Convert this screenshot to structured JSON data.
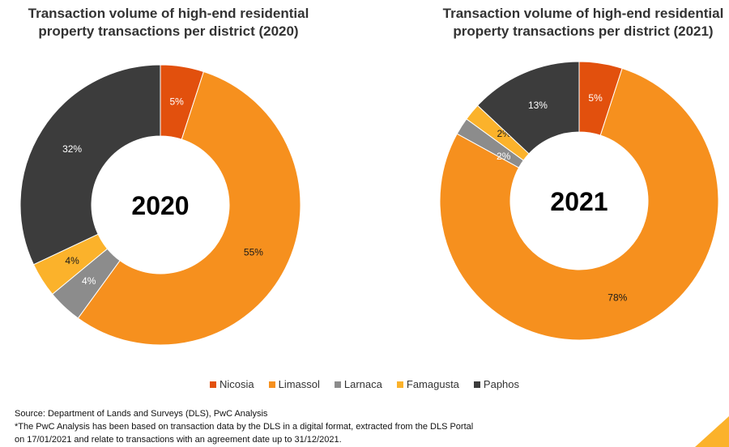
{
  "chart_data": [
    {
      "type": "pie",
      "title": "Transaction volume of high-end residential property transactions per district (2020)",
      "center_label": "2020",
      "categories": [
        "Nicosia",
        "Limassol",
        "Larnaca",
        "Famagusta",
        "Paphos"
      ],
      "values": [
        5,
        55,
        4,
        4,
        32
      ],
      "labels": [
        "5%",
        "55%",
        "4%",
        "4%",
        "32%"
      ]
    },
    {
      "type": "pie",
      "title": "Transaction volume of high-end residential property transactions per district (2021)",
      "center_label": "2021",
      "categories": [
        "Nicosia",
        "Limassol",
        "Larnaca",
        "Famagusta",
        "Paphos"
      ],
      "values": [
        5,
        78,
        2,
        2,
        13
      ],
      "labels": [
        "5%",
        "78%",
        "2%",
        "2%",
        "13%"
      ]
    }
  ],
  "titles": {
    "left_line1": "Transaction volume of high-end residential",
    "left_line2": "property transactions per district (2020)",
    "right_line1": "Transaction volume of high-end residential",
    "right_line2": "property transactions per district (2021)"
  },
  "legend": [
    {
      "label": "Nicosia",
      "color": "#e2500d"
    },
    {
      "label": "Limassol",
      "color": "#f6901e"
    },
    {
      "label": "Larnaca",
      "color": "#8c8c8c"
    },
    {
      "label": "Famagusta",
      "color": "#fbb22b"
    },
    {
      "label": "Paphos",
      "color": "#3c3c3c"
    }
  ],
  "source": {
    "line1": "Source: Department of Lands and Surveys (DLS), PwC Analysis",
    "line2": "*The PwC Analysis has been based on transaction data by the DLS in a digital format, extracted from the DLS Portal",
    "line3": "on 17/01/2021 and relate to transactions with an agreement date up to 31/12/2021."
  },
  "colors": {
    "nicosia": "#e2500d",
    "limassol": "#f6901e",
    "larnaca": "#8c8c8c",
    "famagusta": "#fbb22b",
    "paphos": "#3c3c3c",
    "accent": "#fbb22b"
  }
}
